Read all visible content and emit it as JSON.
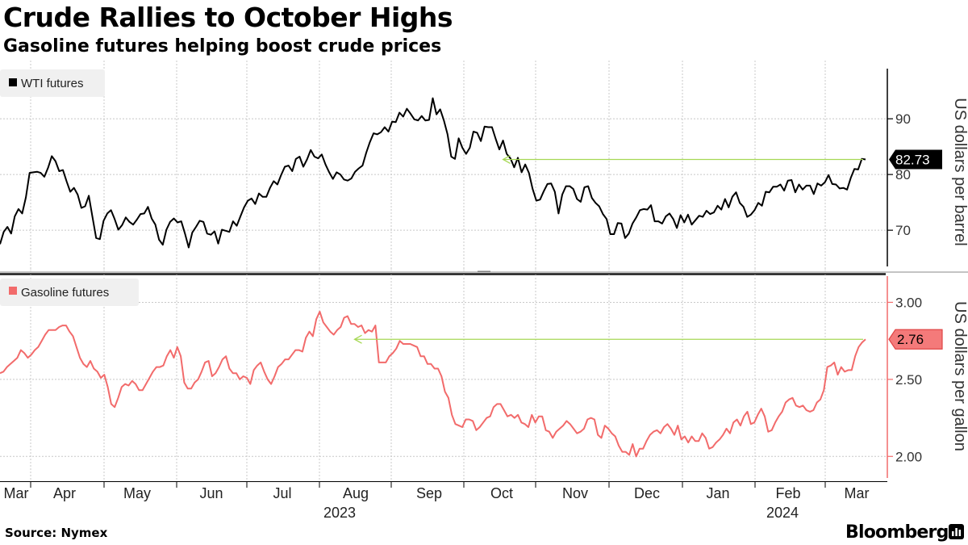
{
  "header": {
    "title": "Crude Rallies to October Highs",
    "subtitle": "Gasoline futures helping boost crude prices"
  },
  "footer": {
    "source": "Source: Nymex",
    "brand": "Bloomberg"
  },
  "colors": {
    "wti": "#000000",
    "gasoline": "#f26b6b",
    "arrow": "#a6d854",
    "grid": "#c8c8c8",
    "legend_bg": "#f0f0f0"
  },
  "chart_data": [
    {
      "type": "line",
      "series": [
        {
          "name": "WTI futures",
          "values": [
            67.5,
            69.7,
            70.6,
            69.4,
            72.5,
            73.8,
            73.0,
            75.9,
            80.3,
            80.4,
            80.5,
            80.3,
            79.6,
            81.2,
            83.3,
            82.4,
            80.6,
            80.8,
            78.8,
            76.9,
            77.6,
            76.4,
            74.0,
            74.3,
            76.2,
            72.4,
            68.6,
            68.4,
            71.7,
            73.0,
            73.6,
            72.0,
            70.1,
            70.9,
            72.3,
            71.5,
            71.0,
            71.9,
            72.9,
            73.0,
            74.2,
            72.1,
            71.0,
            68.3,
            67.4,
            70.1,
            71.5,
            72.1,
            71.4,
            71.6,
            69.4,
            66.9,
            69.6,
            70.6,
            71.7,
            71.5,
            69.4,
            69.2,
            69.8,
            67.6,
            70.1,
            69.9,
            69.7,
            71.6,
            70.8,
            72.5,
            74.1,
            75.3,
            75.7,
            74.7,
            76.6,
            76.0,
            76.0,
            77.6,
            78.8,
            78.2,
            79.9,
            81.4,
            81.6,
            80.6,
            82.8,
            83.2,
            81.4,
            82.7,
            84.4,
            83.2,
            82.9,
            83.6,
            81.8,
            80.4,
            79.2,
            80.4,
            80.0,
            79.1,
            78.9,
            79.3,
            80.5,
            81.1,
            81.6,
            83.9,
            85.8,
            87.4,
            87.2,
            87.6,
            88.5,
            87.7,
            89.5,
            89.4,
            91.1,
            90.4,
            91.8,
            90.9,
            89.9,
            89.7,
            90.5,
            89.7,
            89.8,
            93.7,
            90.8,
            91.7,
            89.7,
            87.2,
            83.2,
            82.8,
            86.5,
            84.8,
            83.7,
            84.8,
            87.7,
            87.5,
            86.0,
            88.6,
            88.5,
            88.5,
            86.4,
            84.5,
            86.1,
            83.7,
            82.9,
            81.3,
            83.0,
            80.4,
            81.8,
            80.3,
            77.4,
            75.3,
            75.5,
            77.0,
            78.3,
            78.4,
            76.9,
            73.0,
            76.4,
            77.9,
            77.9,
            77.4,
            75.6,
            75.1,
            77.7,
            77.9,
            75.8,
            74.9,
            74.3,
            72.9,
            72.0,
            69.3,
            69.3,
            71.3,
            71.2,
            68.6,
            69.4,
            71.2,
            72.3,
            73.6,
            73.8,
            73.7,
            74.5,
            71.6,
            71.6,
            71.2,
            72.5,
            73.0,
            72.0,
            70.4,
            72.7,
            71.4,
            72.8,
            71.0,
            71.8,
            72.6,
            72.4,
            73.5,
            72.9,
            73.2,
            74.4,
            73.7,
            75.6,
            74.1,
            76.0,
            76.8,
            74.9,
            74.2,
            72.4,
            72.8,
            73.6,
            74.9,
            74.4,
            76.9,
            76.8,
            77.8,
            77.8,
            78.2,
            77.1,
            78.9,
            79.0,
            76.8,
            78.2,
            77.3,
            78.0,
            78.0,
            76.5,
            78.4,
            78.0,
            78.6,
            79.9,
            78.3,
            78.2,
            77.5,
            77.6,
            77.3,
            79.4,
            81.0,
            80.9,
            82.8,
            82.7
          ]
        }
      ],
      "ylabel": "US dollars per barrel",
      "yticks": [
        70,
        80,
        90
      ],
      "ylim": [
        63.5,
        99
      ],
      "last_value_label": "82.73",
      "annotation": "arrow from latest value back to early October level"
    },
    {
      "type": "line",
      "series": [
        {
          "name": "Gasoline futures",
          "values": [
            2.54,
            2.55,
            2.58,
            2.6,
            2.62,
            2.64,
            2.69,
            2.67,
            2.64,
            2.66,
            2.69,
            2.71,
            2.75,
            2.79,
            2.82,
            2.82,
            2.82,
            2.84,
            2.85,
            2.85,
            2.81,
            2.78,
            2.71,
            2.64,
            2.6,
            2.58,
            2.62,
            2.57,
            2.55,
            2.51,
            2.53,
            2.45,
            2.34,
            2.32,
            2.38,
            2.45,
            2.47,
            2.46,
            2.49,
            2.47,
            2.43,
            2.43,
            2.47,
            2.51,
            2.55,
            2.58,
            2.58,
            2.59,
            2.65,
            2.69,
            2.64,
            2.71,
            2.65,
            2.48,
            2.44,
            2.44,
            2.48,
            2.5,
            2.55,
            2.61,
            2.62,
            2.52,
            2.54,
            2.58,
            2.63,
            2.65,
            2.57,
            2.54,
            2.54,
            2.5,
            2.52,
            2.51,
            2.47,
            2.56,
            2.59,
            2.61,
            2.55,
            2.5,
            2.47,
            2.52,
            2.58,
            2.6,
            2.63,
            2.63,
            2.66,
            2.69,
            2.69,
            2.68,
            2.77,
            2.81,
            2.78,
            2.89,
            2.94,
            2.87,
            2.84,
            2.81,
            2.79,
            2.82,
            2.84,
            2.9,
            2.91,
            2.86,
            2.86,
            2.84,
            2.85,
            2.8,
            2.82,
            2.81,
            2.85,
            2.61,
            2.61,
            2.61,
            2.65,
            2.67,
            2.7,
            2.75,
            2.73,
            2.73,
            2.73,
            2.72,
            2.71,
            2.65,
            2.65,
            2.6,
            2.6,
            2.57,
            2.57,
            2.52,
            2.42,
            2.38,
            2.27,
            2.21,
            2.2,
            2.19,
            2.24,
            2.24,
            2.23,
            2.17,
            2.19,
            2.22,
            2.25,
            2.26,
            2.32,
            2.34,
            2.34,
            2.3,
            2.26,
            2.27,
            2.25,
            2.27,
            2.22,
            2.21,
            2.19,
            2.27,
            2.22,
            2.26,
            2.26,
            2.17,
            2.16,
            2.12,
            2.16,
            2.18,
            2.2,
            2.23,
            2.21,
            2.18,
            2.15,
            2.16,
            2.18,
            2.24,
            2.25,
            2.24,
            2.14,
            2.12,
            2.2,
            2.18,
            2.15,
            2.13,
            2.07,
            2.03,
            2.03,
            2.01,
            2.08,
            2.0,
            2.05,
            2.05,
            2.1,
            2.14,
            2.16,
            2.17,
            2.15,
            2.19,
            2.21,
            2.18,
            2.14,
            2.2,
            2.11,
            2.13,
            2.09,
            2.13,
            2.1,
            2.1,
            2.15,
            2.12,
            2.05,
            2.06,
            2.09,
            2.11,
            2.14,
            2.18,
            2.15,
            2.22,
            2.24,
            2.2,
            2.26,
            2.29,
            2.21,
            2.22,
            2.27,
            2.31,
            2.26,
            2.16,
            2.17,
            2.22,
            2.26,
            2.29,
            2.35,
            2.37,
            2.38,
            2.33,
            2.32,
            2.33,
            2.3,
            2.29,
            2.3,
            2.35,
            2.37,
            2.43,
            2.58,
            2.59,
            2.61,
            2.53,
            2.58,
            2.55,
            2.56,
            2.56,
            2.65,
            2.71,
            2.74,
            2.76
          ]
        }
      ],
      "ylabel": "US dollars per gallon",
      "yticks": [
        2.0,
        2.5,
        3.0
      ],
      "yticklabels": [
        "2.00",
        "2.50",
        "3.00"
      ],
      "ylim": [
        1.86,
        3.17
      ],
      "last_value_label": "2.76",
      "annotation": "arrow from latest value back to late August level"
    }
  ],
  "x_axis": {
    "months": [
      "Mar",
      "Apr",
      "May",
      "Jun",
      "Jul",
      "Aug",
      "Sep",
      "Oct",
      "Nov",
      "Dec",
      "Jan",
      "Feb",
      "Mar"
    ],
    "years": [
      "2023",
      "2024"
    ]
  }
}
